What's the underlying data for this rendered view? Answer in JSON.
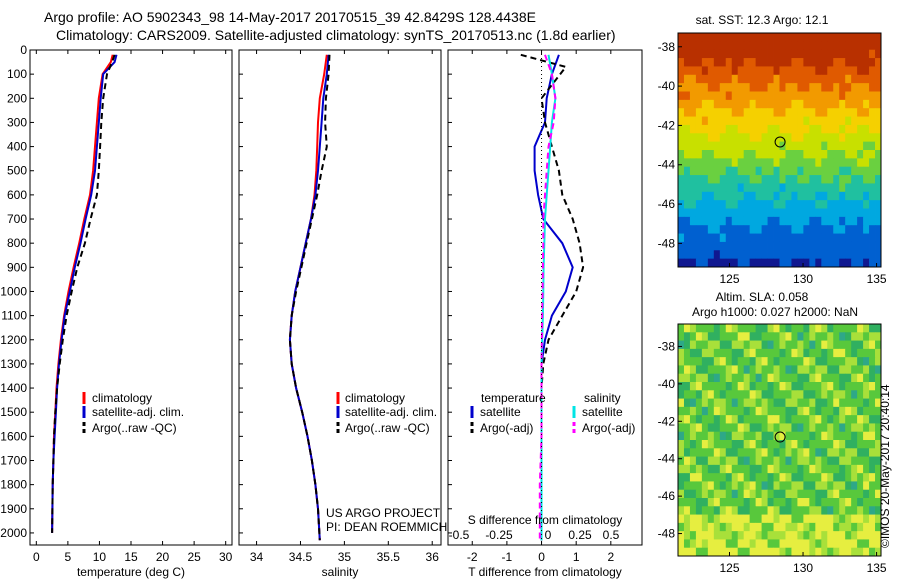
{
  "header": {
    "line1": "Argo profile: AO 5902343_98 14-May-2017 20170515_39 42.8429S 128.4438E",
    "line2": "Climatology: CARS2009. Satellite-adjusted climatology: synTS_20170513.nc (1.8d earlier)"
  },
  "colors": {
    "climatology": "#ff0000",
    "satellite": "#0000cc",
    "argo": "#000000",
    "satellite_salinity": "#00e5e5",
    "argo_salinity": "#ff00ff"
  },
  "project": {
    "line1": "US ARGO PROJECT",
    "line2": "PI: DEAN ROEMMICH"
  },
  "credit": "©IMOS 20-May-2017 20:40:14",
  "chart_data": [
    {
      "id": "temperature",
      "type": "line",
      "xlabel": "temperature (deg C)",
      "ylabel": "",
      "xlim": [
        -1,
        31
      ],
      "ylim": [
        2050,
        0
      ],
      "xticks": [
        0,
        5,
        10,
        15,
        20,
        25,
        30
      ],
      "yticks": [
        0,
        100,
        200,
        300,
        400,
        500,
        600,
        700,
        800,
        900,
        1000,
        1100,
        1200,
        1300,
        1400,
        1500,
        1600,
        1700,
        1800,
        1900,
        2000
      ],
      "legend": [
        "climatology",
        "satellite-adj. clim.",
        "Argo(..raw -QC)"
      ],
      "series": [
        {
          "name": "climatology",
          "color": "#ff0000",
          "style": "solid",
          "x": [
            12.1,
            11.8,
            10.5,
            9.9,
            9.6,
            9.3,
            9.0,
            8.5,
            7.6,
            6.8,
            5.9,
            5.1,
            4.4,
            3.9,
            3.5,
            3.2,
            3.0,
            2.8,
            2.7,
            2.6,
            2.5
          ],
          "y": [
            20,
            50,
            100,
            200,
            300,
            400,
            500,
            600,
            700,
            800,
            900,
            1000,
            1100,
            1200,
            1300,
            1400,
            1500,
            1600,
            1700,
            1800,
            2000
          ]
        },
        {
          "name": "satellite-adj. clim.",
          "color": "#0000cc",
          "style": "solid",
          "x": [
            12.7,
            12.4,
            10.6,
            10.2,
            9.9,
            9.6,
            9.3,
            8.7,
            7.8,
            7.0,
            6.1,
            5.3,
            4.5,
            4.0,
            3.6,
            3.3,
            3.1,
            2.9,
            2.7,
            2.6,
            2.5
          ],
          "y": [
            20,
            50,
            100,
            200,
            300,
            400,
            500,
            600,
            700,
            800,
            900,
            1000,
            1100,
            1200,
            1300,
            1400,
            1500,
            1600,
            1700,
            1800,
            2000
          ]
        },
        {
          "name": "Argo(..raw -QC)",
          "color": "#000000",
          "style": "dashed",
          "x": [
            12.4,
            12.0,
            11.2,
            10.6,
            10.3,
            10.1,
            9.9,
            9.6,
            8.6,
            7.7,
            6.5,
            5.6,
            4.8,
            4.2,
            3.7,
            3.3,
            3.0,
            2.8,
            2.7,
            2.6,
            2.5
          ],
          "y": [
            20,
            50,
            100,
            200,
            300,
            400,
            500,
            600,
            700,
            800,
            900,
            1000,
            1100,
            1200,
            1300,
            1400,
            1500,
            1600,
            1700,
            1800,
            2000
          ]
        }
      ]
    },
    {
      "id": "salinity",
      "type": "line",
      "xlabel": "salinity",
      "ylabel": "",
      "xlim": [
        33.8,
        36.1
      ],
      "ylim": [
        2050,
        0
      ],
      "xticks": [
        34,
        34.5,
        35,
        35.5,
        36
      ],
      "xtick_labels": [
        "34",
        "34.5",
        "35",
        "35.5",
        "36"
      ],
      "legend": [
        "climatology",
        "satellite-adj. clim.",
        "Argo(..raw -QC)"
      ],
      "series": [
        {
          "name": "climatology",
          "color": "#ff0000",
          "style": "solid",
          "x": [
            34.8,
            34.77,
            34.72,
            34.7,
            34.69,
            34.68,
            34.66,
            34.62,
            34.56,
            34.5,
            34.44,
            34.4,
            34.38,
            34.4,
            34.45,
            34.52,
            34.58,
            34.63,
            34.67,
            34.7,
            34.72
          ],
          "y": [
            20,
            100,
            200,
            300,
            400,
            500,
            600,
            700,
            800,
            900,
            1000,
            1100,
            1200,
            1300,
            1400,
            1500,
            1600,
            1700,
            1800,
            1900,
            2030
          ]
        },
        {
          "name": "satellite-adj. clim.",
          "color": "#0000cc",
          "style": "solid",
          "x": [
            34.82,
            34.8,
            34.76,
            34.74,
            34.72,
            34.7,
            34.67,
            34.62,
            34.56,
            34.5,
            34.44,
            34.4,
            34.38,
            34.4,
            34.45,
            34.52,
            34.58,
            34.63,
            34.67,
            34.7,
            34.72
          ],
          "y": [
            20,
            100,
            200,
            300,
            400,
            500,
            600,
            700,
            800,
            900,
            1000,
            1100,
            1200,
            1300,
            1400,
            1500,
            1600,
            1700,
            1800,
            1900,
            2030
          ]
        },
        {
          "name": "Argo(..raw -QC)",
          "color": "#000000",
          "style": "dashed",
          "x": [
            34.83,
            34.82,
            34.79,
            34.78,
            34.8,
            34.74,
            34.69,
            34.63,
            34.57,
            34.51,
            34.45,
            34.4,
            34.38,
            34.4,
            34.45,
            34.52,
            34.58,
            34.63,
            34.67,
            34.7,
            34.72
          ],
          "y": [
            20,
            100,
            200,
            300,
            400,
            500,
            600,
            700,
            800,
            900,
            1000,
            1100,
            1200,
            1300,
            1400,
            1500,
            1600,
            1700,
            1800,
            1900,
            2030
          ]
        }
      ]
    },
    {
      "id": "difference",
      "type": "line",
      "xlabel": "T difference from climatology",
      "xlabel_top": "S difference from climatology",
      "ylabel": "",
      "xlim": [
        -2.7,
        2.9
      ],
      "ylim": [
        2050,
        0
      ],
      "xticks": [
        -2,
        -1,
        0,
        1,
        2
      ],
      "xticks_top": [
        -0.5,
        -0.25,
        0,
        0.25,
        0.5
      ],
      "legend_groups": [
        "temperature",
        "salinity"
      ],
      "legend": [
        "satellite",
        "Argo(-adj)",
        "satellite",
        "Argo(-adj)"
      ],
      "series": [
        {
          "name": "temperature satellite",
          "color": "#0000cc",
          "style": "solid",
          "x": [
            0.5,
            0.3,
            0.15,
            0.1,
            -0.2,
            -0.2,
            -0.1,
            0.05,
            0.6,
            0.9,
            0.7,
            0.3,
            0.1,
            0.0,
            0.0,
            0.0,
            0.0,
            0.0,
            0.0
          ],
          "y": [
            20,
            100,
            200,
            300,
            400,
            500,
            600,
            700,
            800,
            900,
            1000,
            1100,
            1200,
            1300,
            1400,
            1600,
            1800,
            1900,
            2030
          ]
        },
        {
          "name": "temperature Argo(-adj)",
          "color": "#000000",
          "style": "dashed",
          "x": [
            -0.6,
            0.7,
            0.0,
            0.1,
            0.3,
            0.5,
            0.6,
            0.9,
            1.1,
            1.2,
            1.0,
            0.6,
            0.2,
            0.05,
            0.0,
            0.0,
            0.0,
            0.0,
            0.0
          ],
          "y": [
            20,
            70,
            200,
            300,
            400,
            500,
            600,
            700,
            800,
            900,
            1000,
            1100,
            1200,
            1300,
            1400,
            1600,
            1800,
            1900,
            2030
          ]
        },
        {
          "name": "salinity satellite",
          "color": "#00e5e5",
          "style": "solid",
          "x": [
            0.2,
            0.3,
            0.4,
            0.3,
            0.25,
            0.2,
            0.15,
            0.1,
            0.08,
            0.06,
            0.05,
            0.04,
            0.02,
            0.0,
            0.0,
            0.0,
            0.0,
            0.0,
            0.0
          ],
          "y": [
            20,
            100,
            200,
            300,
            400,
            500,
            600,
            700,
            800,
            900,
            1000,
            1100,
            1200,
            1300,
            1400,
            1600,
            1800,
            1900,
            2030
          ]
        },
        {
          "name": "salinity Argo(-adj)",
          "color": "#ff00ff",
          "style": "dashed",
          "x": [
            0.1,
            0.3,
            0.4,
            0.35,
            0.2,
            0.15,
            0.1,
            0.05,
            0.05,
            0.04,
            0.03,
            0.02,
            0.01,
            0.0,
            0.0,
            0.0,
            -0.05,
            -0.05,
            -0.05
          ],
          "y": [
            20,
            100,
            200,
            300,
            400,
            500,
            600,
            700,
            800,
            900,
            1000,
            1100,
            1200,
            1300,
            1400,
            1600,
            1800,
            1900,
            2030
          ]
        }
      ]
    },
    {
      "id": "sst_map",
      "type": "heatmap",
      "title": "sat. SST: 12.3  Argo: 12.1",
      "xlim": [
        121.5,
        135.3
      ],
      "ylim": [
        -49.2,
        -37.3
      ],
      "xticks": [
        125,
        130,
        135
      ],
      "yticks": [
        -38,
        -40,
        -42,
        -44,
        -46,
        -48
      ],
      "marker": {
        "lon": 128.44,
        "lat": -42.84
      }
    },
    {
      "id": "sla_map",
      "type": "heatmap",
      "title": "Altim. SLA: 0.058",
      "subtitle": "Argo h1000: 0.027 h2000: NaN",
      "xlim": [
        121.5,
        135.3
      ],
      "ylim": [
        -49.2,
        -36.8
      ],
      "xticks": [
        125,
        130,
        135
      ],
      "yticks": [
        -38,
        -40,
        -42,
        -44,
        -46,
        -48
      ],
      "marker": {
        "lon": 128.44,
        "lat": -42.84
      }
    }
  ]
}
